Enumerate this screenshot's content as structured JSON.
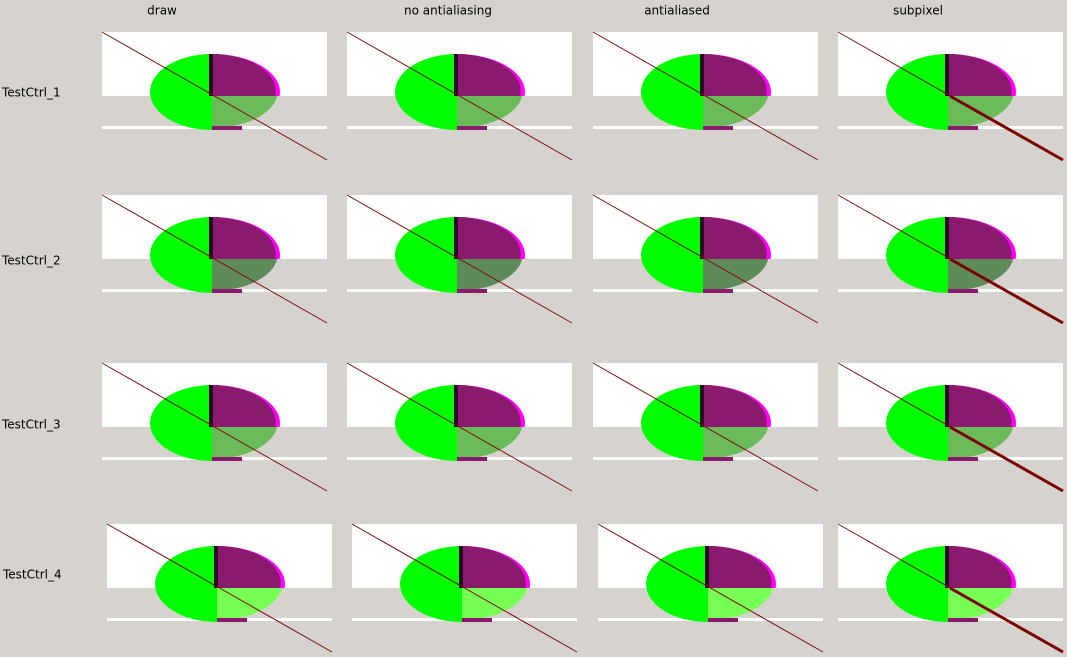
{
  "column_headers": [
    "draw",
    "no antialiasing",
    "antialiased",
    "subpixel"
  ],
  "row_labels": [
    "TestCtrl_1",
    "TestCtrl_2",
    "TestCtrl_3",
    "TestCtrl_4"
  ]
}
